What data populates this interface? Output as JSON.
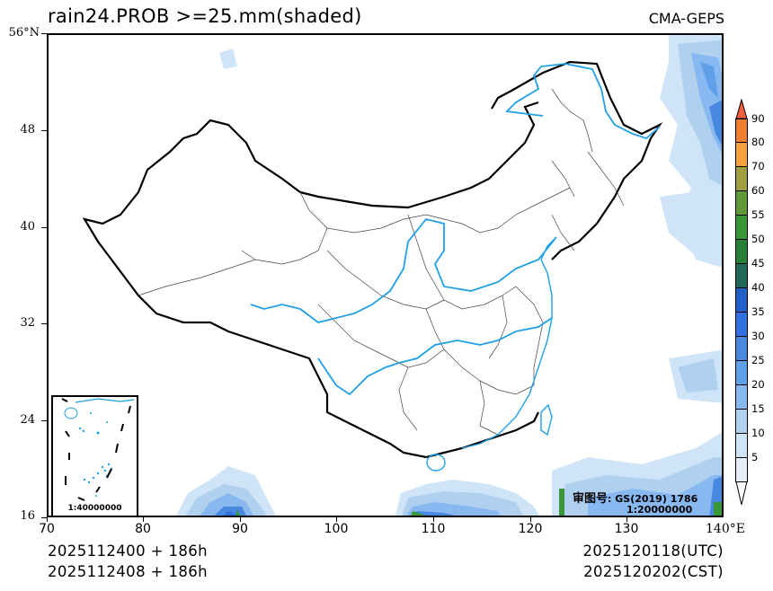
{
  "header": {
    "title": "rain24.PROB  >=25.mm(shaded)",
    "model": "CMA-GEPS"
  },
  "axes": {
    "y_ticks": [
      {
        "label": "56°N",
        "lat": 56
      },
      {
        "label": "48",
        "lat": 48
      },
      {
        "label": "40",
        "lat": 40
      },
      {
        "label": "32",
        "lat": 32
      },
      {
        "label": "24",
        "lat": 24
      },
      {
        "label": "16",
        "lat": 16
      }
    ],
    "x_ticks": [
      {
        "label": "70",
        "lon": 70
      },
      {
        "label": "80",
        "lon": 80
      },
      {
        "label": "90",
        "lon": 90
      },
      {
        "label": "100",
        "lon": 100
      },
      {
        "label": "110",
        "lon": 110
      },
      {
        "label": "120",
        "lon": 120
      },
      {
        "label": "130",
        "lon": 130
      },
      {
        "label": "140°E",
        "lon": 140
      }
    ],
    "lon_range": [
      70,
      140
    ],
    "lat_range": [
      16,
      56
    ]
  },
  "footer": {
    "init_utc": "2025112400  +  186h",
    "init_cst": "2025112408  +  186h",
    "valid_utc": "2025120118(UTC)",
    "valid_cst": "2025120202(CST)"
  },
  "annotations": {
    "approval_label": "审图号",
    "approval_code": ": GS(2019) 1786",
    "main_scale": "1:20000000",
    "inset_scale": "1:40000000"
  },
  "colorbar": {
    "levels": [
      {
        "label": "90",
        "color": "#f08030"
      },
      {
        "label": "80",
        "color": "#f8a040"
      },
      {
        "label": "70",
        "color": "#a0a040"
      },
      {
        "label": "60",
        "color": "#609838"
      },
      {
        "label": "55",
        "color": "#389838"
      },
      {
        "label": "50",
        "color": "#288038"
      },
      {
        "label": "45",
        "color": "#206858"
      },
      {
        "label": "40",
        "color": "#2060c8"
      },
      {
        "label": "35",
        "color": "#3070e0"
      },
      {
        "label": "30",
        "color": "#4888e0"
      },
      {
        "label": "25",
        "color": "#60a0e8"
      },
      {
        "label": "20",
        "color": "#88b8f0"
      },
      {
        "label": "15",
        "color": "#b0d0f0"
      },
      {
        "label": "10",
        "color": "#d0e4f8"
      },
      {
        "label": "5",
        "color": "#ffffff"
      }
    ],
    "top_arrow_color": "#f06040",
    "bottom_arrow_color": "#ffffff"
  },
  "colors": {
    "river": "#1ea0e8",
    "border": "#000000",
    "province": "#555555"
  }
}
